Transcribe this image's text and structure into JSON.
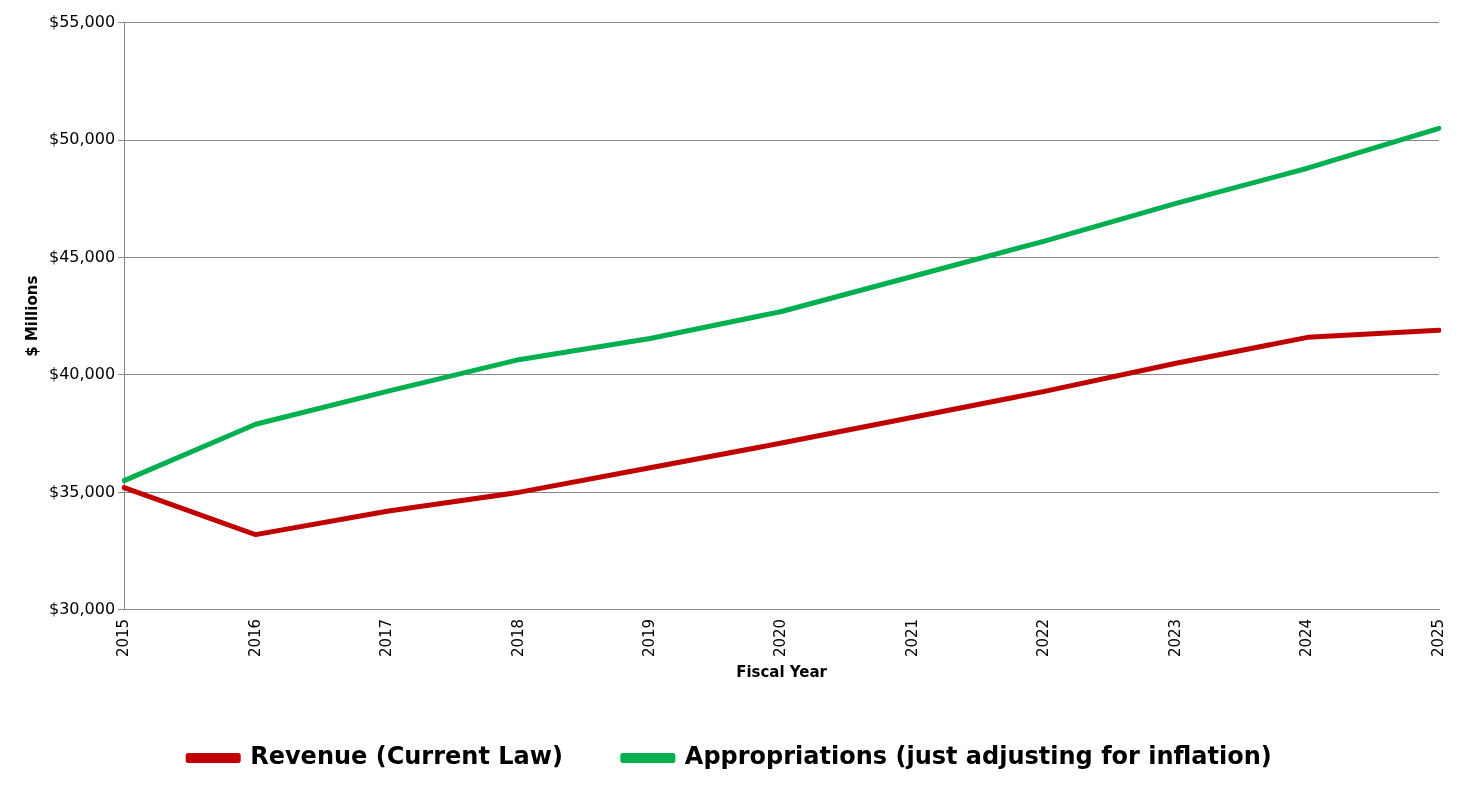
{
  "chart_data": {
    "type": "line",
    "xlabel": "Fiscal Year",
    "ylabel": "$ Millions",
    "categories": [
      "2015",
      "2016",
      "2017",
      "2018",
      "2019",
      "2020",
      "2021",
      "2022",
      "2023",
      "2024",
      "2025"
    ],
    "series": [
      {
        "name": "Revenue (Current Law)",
        "color": "#c00000",
        "values": [
          35200,
          33200,
          34200,
          35000,
          36050,
          37100,
          38200,
          39300,
          40500,
          41600,
          41900
        ]
      },
      {
        "name": "Appropriations (just adjusting for inflation)",
        "color": "#00b050",
        "values": [
          35500,
          37900,
          39300,
          40650,
          41550,
          42700,
          44200,
          45700,
          47300,
          48800,
          50500
        ]
      }
    ],
    "ylim": [
      30000,
      55000
    ],
    "yticks": [
      {
        "value": 30000,
        "label": "$30,000"
      },
      {
        "value": 35000,
        "label": "$35,000"
      },
      {
        "value": 40000,
        "label": "$40,000"
      },
      {
        "value": 45000,
        "label": "$45,000"
      },
      {
        "value": 50000,
        "label": "$50,000"
      },
      {
        "value": 55000,
        "label": "$55,000"
      }
    ],
    "grid": "y",
    "legend": "bottom",
    "marker": "none",
    "line_style": "solid"
  }
}
